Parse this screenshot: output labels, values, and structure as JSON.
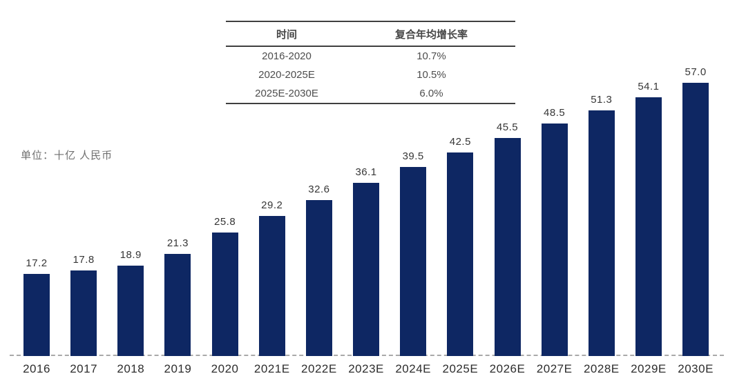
{
  "unit_label": "单位：十亿 人民币",
  "cagr_table": {
    "headers": [
      "时间",
      "复合年均增长率"
    ],
    "rows": [
      [
        "2016-2020",
        "10.7%"
      ],
      [
        "2020-2025E",
        "10.5%"
      ],
      [
        "2025E-2030E",
        "6.0%"
      ]
    ]
  },
  "chart_data": {
    "type": "bar",
    "categories": [
      "2016",
      "2017",
      "2018",
      "2019",
      "2020",
      "2021E",
      "2022E",
      "2023E",
      "2024E",
      "2025E",
      "2026E",
      "2027E",
      "2028E",
      "2029E",
      "2030E"
    ],
    "values": [
      17.2,
      17.8,
      18.9,
      21.3,
      25.8,
      29.2,
      32.6,
      36.1,
      39.5,
      42.5,
      45.5,
      48.5,
      51.3,
      54.1,
      57.0
    ],
    "title": "",
    "xlabel": "",
    "ylabel": "单位：十亿 人民币",
    "ylim": [
      0,
      60
    ],
    "grid": false,
    "legend": "none",
    "value_labels": true,
    "bar_color": "#0e2763",
    "axis_line_color": "#a9a9a9",
    "value_label_color": "#363636",
    "annotation_table": "CAGR 复合年均增长率"
  }
}
